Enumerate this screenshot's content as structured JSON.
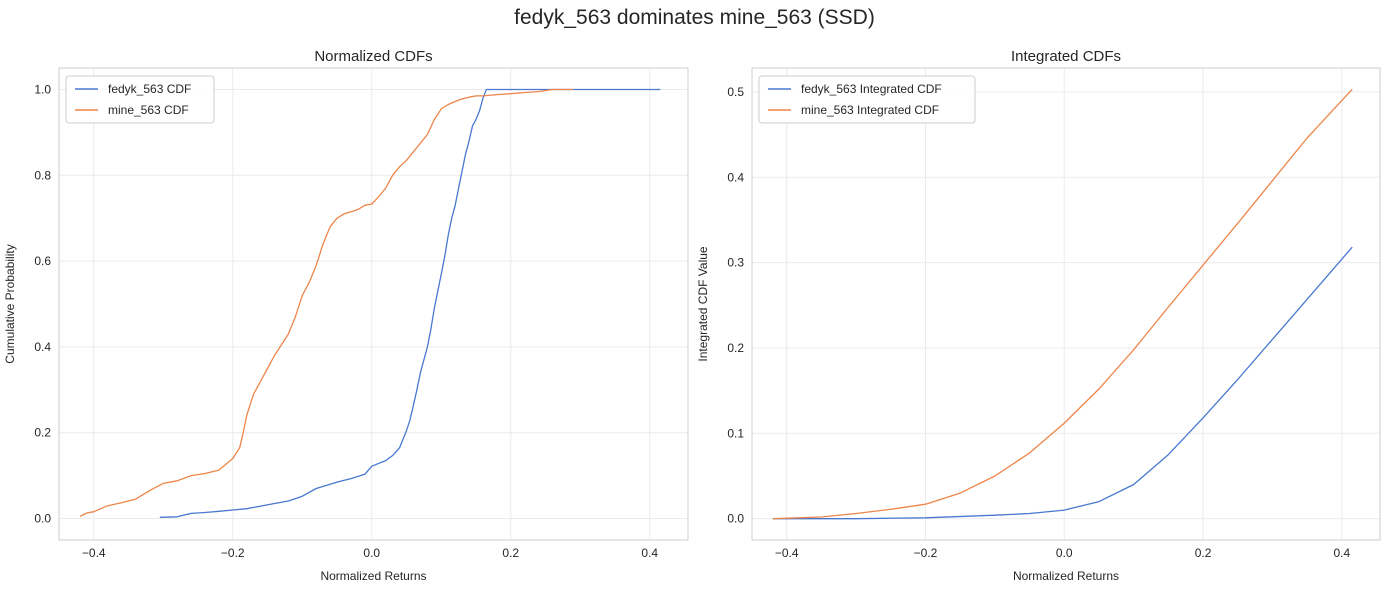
{
  "figure": {
    "suptitle": "fedyk_563 dominates mine_563 (SSD)"
  },
  "chart_data": [
    {
      "type": "line",
      "title": "Normalized CDFs",
      "xlabel": "Normalized Returns",
      "ylabel": "Cumulative Probability",
      "xlim": [
        -0.45,
        0.455
      ],
      "ylim": [
        -0.05,
        1.05
      ],
      "xticks": [
        -0.4,
        -0.2,
        0.0,
        0.2,
        0.4
      ],
      "xtick_labels": [
        "−0.4",
        "−0.2",
        "0.0",
        "0.2",
        "0.4"
      ],
      "yticks": [
        0.0,
        0.2,
        0.4,
        0.6,
        0.8,
        1.0
      ],
      "ytick_labels": [
        "0.0",
        "0.2",
        "0.4",
        "0.6",
        "0.8",
        "1.0"
      ],
      "grid": true,
      "legend_position": "top-left",
      "series": [
        {
          "name": "fedyk_563 CDF",
          "color": "#4878d0",
          "x": [
            -0.305,
            -0.28,
            -0.26,
            -0.24,
            -0.22,
            -0.2,
            -0.18,
            -0.16,
            -0.14,
            -0.12,
            -0.1,
            -0.08,
            -0.06,
            -0.05,
            -0.03,
            -0.01,
            0.0,
            0.02,
            0.03,
            0.04,
            0.045,
            0.05,
            0.055,
            0.06,
            0.065,
            0.07,
            0.075,
            0.08,
            0.085,
            0.09,
            0.095,
            0.1,
            0.105,
            0.11,
            0.115,
            0.12,
            0.125,
            0.13,
            0.135,
            0.14,
            0.145,
            0.15,
            0.155,
            0.16,
            0.165,
            0.17,
            0.18,
            0.19,
            0.2,
            0.22,
            0.25,
            0.26,
            0.27,
            0.28,
            0.3,
            0.32,
            0.34,
            0.36,
            0.38,
            0.4,
            0.415
          ],
          "y": [
            0.003,
            0.004,
            0.012,
            0.014,
            0.017,
            0.02,
            0.023,
            0.029,
            0.035,
            0.041,
            0.052,
            0.07,
            0.08,
            0.085,
            0.093,
            0.103,
            0.122,
            0.135,
            0.147,
            0.165,
            0.185,
            0.205,
            0.23,
            0.265,
            0.3,
            0.34,
            0.37,
            0.4,
            0.44,
            0.49,
            0.53,
            0.57,
            0.61,
            0.66,
            0.7,
            0.73,
            0.77,
            0.81,
            0.85,
            0.88,
            0.915,
            0.93,
            0.95,
            0.98,
            1.0,
            1.0,
            1.0,
            1.0,
            1.0,
            1.0,
            1.0,
            1.0,
            1.0,
            1.0,
            1.0,
            1.0,
            1.0,
            1.0,
            1.0,
            1.0,
            1.0
          ]
        },
        {
          "name": "mine_563 CDF",
          "color": "#ee854a",
          "x": [
            -0.42,
            -0.41,
            -0.4,
            -0.38,
            -0.36,
            -0.34,
            -0.32,
            -0.3,
            -0.28,
            -0.26,
            -0.24,
            -0.22,
            -0.2,
            -0.19,
            -0.185,
            -0.18,
            -0.175,
            -0.17,
            -0.16,
            -0.15,
            -0.14,
            -0.13,
            -0.12,
            -0.11,
            -0.1,
            -0.09,
            -0.08,
            -0.07,
            -0.06,
            -0.05,
            -0.04,
            -0.03,
            -0.02,
            -0.01,
            0.0,
            0.01,
            0.02,
            0.03,
            0.04,
            0.05,
            0.06,
            0.07,
            0.08,
            0.09,
            0.1,
            0.11,
            0.12,
            0.13,
            0.14,
            0.15,
            0.16,
            0.18,
            0.2,
            0.22,
            0.24,
            0.26,
            0.29
          ],
          "y": [
            0.005,
            0.013,
            0.016,
            0.03,
            0.037,
            0.045,
            0.065,
            0.082,
            0.088,
            0.1,
            0.105,
            0.113,
            0.14,
            0.165,
            0.2,
            0.24,
            0.265,
            0.29,
            0.32,
            0.35,
            0.38,
            0.405,
            0.43,
            0.47,
            0.52,
            0.55,
            0.59,
            0.64,
            0.68,
            0.7,
            0.71,
            0.715,
            0.72,
            0.73,
            0.733,
            0.75,
            0.77,
            0.8,
            0.82,
            0.835,
            0.855,
            0.875,
            0.895,
            0.93,
            0.955,
            0.965,
            0.972,
            0.978,
            0.982,
            0.985,
            0.985,
            0.988,
            0.99,
            0.993,
            0.995,
            1.0,
            1.0
          ]
        }
      ]
    },
    {
      "type": "line",
      "title": "Integrated CDFs",
      "xlabel": "Normalized Returns",
      "ylabel": "Integrated CDF Value",
      "xlim": [
        -0.45,
        0.455
      ],
      "ylim": [
        -0.025,
        0.528
      ],
      "xticks": [
        -0.4,
        -0.2,
        0.0,
        0.2,
        0.4
      ],
      "xtick_labels": [
        "−0.4",
        "−0.2",
        "0.0",
        "0.2",
        "0.4"
      ],
      "yticks": [
        0.0,
        0.1,
        0.2,
        0.3,
        0.4,
        0.5
      ],
      "ytick_labels": [
        "0.0",
        "0.1",
        "0.2",
        "0.3",
        "0.4",
        "0.5"
      ],
      "grid": true,
      "legend_position": "top-left",
      "series": [
        {
          "name": "fedyk_563 Integrated CDF",
          "color": "#4878d0",
          "x": [
            -0.42,
            -0.3,
            -0.2,
            -0.1,
            -0.05,
            0.0,
            0.05,
            0.1,
            0.15,
            0.2,
            0.25,
            0.3,
            0.35,
            0.415
          ],
          "y": [
            0.0,
            0.0,
            0.001,
            0.004,
            0.006,
            0.01,
            0.02,
            0.04,
            0.075,
            0.118,
            0.163,
            0.21,
            0.257,
            0.318
          ]
        },
        {
          "name": "mine_563 Integrated CDF",
          "color": "#ee854a",
          "x": [
            -0.42,
            -0.35,
            -0.3,
            -0.25,
            -0.2,
            -0.15,
            -0.1,
            -0.05,
            0.0,
            0.05,
            0.1,
            0.15,
            0.2,
            0.25,
            0.3,
            0.35,
            0.415
          ],
          "y": [
            0.0,
            0.002,
            0.006,
            0.011,
            0.017,
            0.03,
            0.05,
            0.077,
            0.112,
            0.152,
            0.198,
            0.248,
            0.297,
            0.346,
            0.396,
            0.446,
            0.503
          ]
        }
      ]
    }
  ]
}
